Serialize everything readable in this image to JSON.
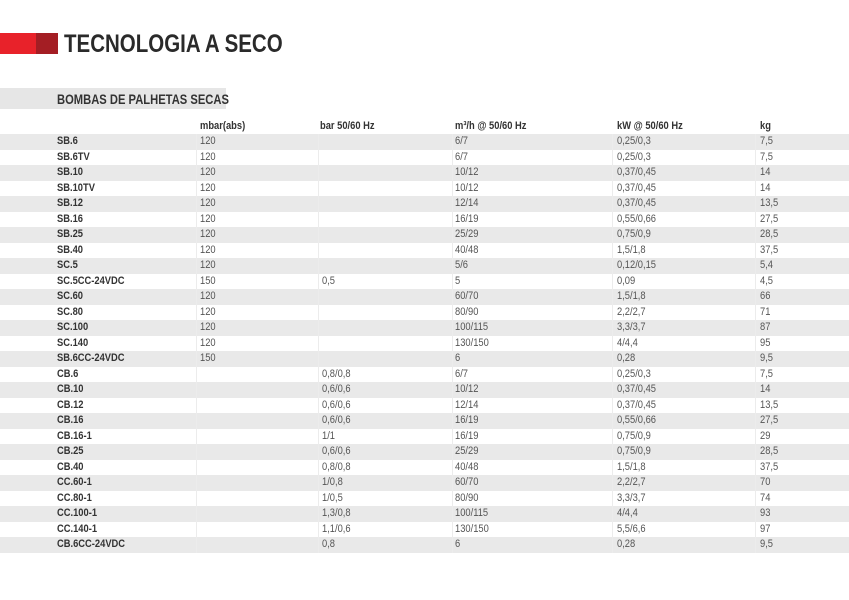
{
  "page": {
    "title": "TECNOLOGIA A SECO",
    "section_title": "BOMBAS DE PALHETAS SECAS",
    "accent_colors": {
      "red": "#e8222a",
      "dark_red": "#a41e24"
    }
  },
  "table": {
    "headers": [
      "",
      "mbar(abs)",
      "bar 50/60 Hz",
      "m³/h @ 50/60 Hz",
      "kW @ 50/60 Hz",
      "kg"
    ],
    "rows": [
      [
        "SB.6",
        "120",
        "",
        "6/7",
        "0,25/0,3",
        "7,5"
      ],
      [
        "SB.6TV",
        "120",
        "",
        "6/7",
        "0,25/0,3",
        "7,5"
      ],
      [
        "SB.10",
        "120",
        "",
        "10/12",
        "0,37/0,45",
        "14"
      ],
      [
        "SB.10TV",
        "120",
        "",
        "10/12",
        "0,37/0,45",
        "14"
      ],
      [
        "SB.12",
        "120",
        "",
        "12/14",
        "0,37/0,45",
        "13,5"
      ],
      [
        "SB.16",
        "120",
        "",
        "16/19",
        "0,55/0,66",
        "27,5"
      ],
      [
        "SB.25",
        "120",
        "",
        "25/29",
        "0,75/0,9",
        "28,5"
      ],
      [
        "SB.40",
        "120",
        "",
        "40/48",
        "1,5/1,8",
        "37,5"
      ],
      [
        "SC.5",
        "120",
        "",
        "5/6",
        "0,12/0,15",
        "5,4"
      ],
      [
        "SC.5CC-24VDC",
        "150",
        "0,5",
        "5",
        "0,09",
        "4,5"
      ],
      [
        "SC.60",
        "120",
        "",
        "60/70",
        "1,5/1,8",
        "66"
      ],
      [
        "SC.80",
        "120",
        "",
        "80/90",
        "2,2/2,7",
        "71"
      ],
      [
        "SC.100",
        "120",
        "",
        "100/115",
        "3,3/3,7",
        "87"
      ],
      [
        "SC.140",
        "120",
        "",
        "130/150",
        "4/4,4",
        "95"
      ],
      [
        "SB.6CC-24VDC",
        "150",
        "",
        "6",
        "0,28",
        "9,5"
      ],
      [
        "CB.6",
        "",
        "0,8/0,8",
        "6/7",
        "0,25/0,3",
        "7,5"
      ],
      [
        "CB.10",
        "",
        "0,6/0,6",
        "10/12",
        "0,37/0,45",
        "14"
      ],
      [
        "CB.12",
        "",
        "0,6/0,6",
        "12/14",
        "0,37/0,45",
        "13,5"
      ],
      [
        "CB.16",
        "",
        "0,6/0,6",
        "16/19",
        "0,55/0,66",
        "27,5"
      ],
      [
        "CB.16-1",
        "",
        "1/1",
        "16/19",
        "0,75/0,9",
        "29"
      ],
      [
        "CB.25",
        "",
        "0,6/0,6",
        "25/29",
        "0,75/0,9",
        "28,5"
      ],
      [
        "CB.40",
        "",
        "0,8/0,8",
        "40/48",
        "1,5/1,8",
        "37,5"
      ],
      [
        "CC.60-1",
        "",
        "1/0,8",
        "60/70",
        "2,2/2,7",
        "70"
      ],
      [
        "CC.80-1",
        "",
        "1/0,5",
        "80/90",
        "3,3/3,7",
        "74"
      ],
      [
        "CC.100-1",
        "",
        "1,3/0,8",
        "100/115",
        "4/4,4",
        "93"
      ],
      [
        "CC.140-1",
        "",
        "1,1/0,6",
        "130/150",
        "5,5/6,6",
        "97"
      ],
      [
        "CB.6CC-24VDC",
        "",
        "0,8",
        "6",
        "0,28",
        "9,5"
      ]
    ]
  }
}
